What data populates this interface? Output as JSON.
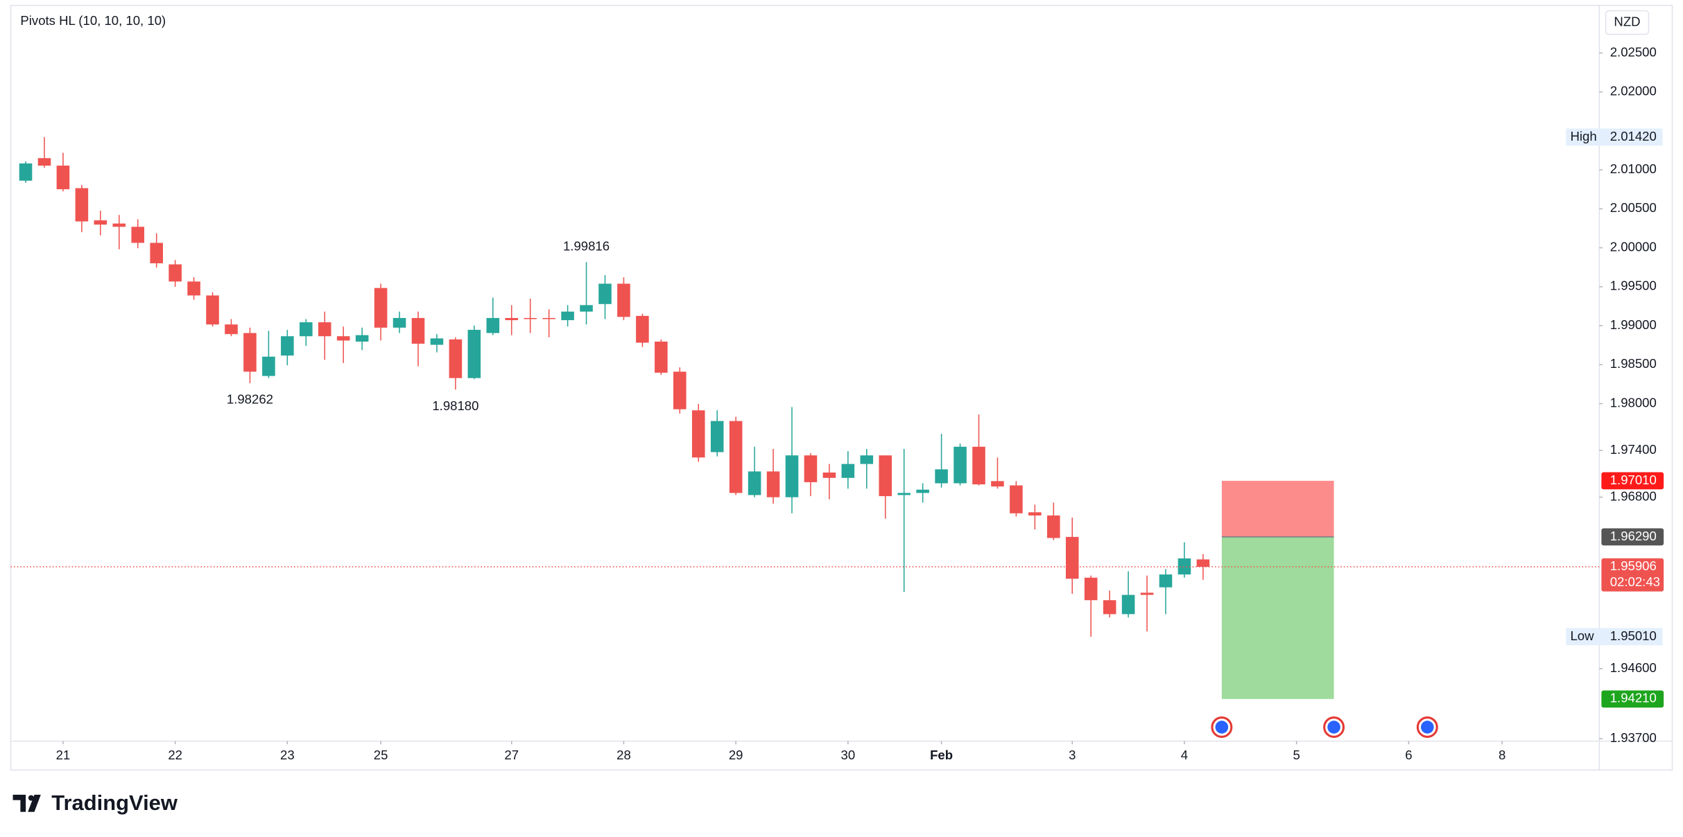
{
  "brand": "TradingView",
  "chart_data": {
    "type": "candlestick",
    "indicator": "Pivots HL (10, 10, 10, 10)",
    "currency": "NZD",
    "up_color": "#26a69a",
    "down_color": "#ef5350",
    "grid": false,
    "open": [
      2.00861,
      2.0115,
      2.01054,
      2.00765,
      2.00352,
      2.00311,
      2.00269,
      2.00063,
      1.99787,
      1.99567,
      1.99388,
      1.99016,
      1.98906,
      1.98355,
      1.98617,
      1.98865,
      1.99044,
      1.98865,
      1.98796,
      1.99484,
      1.98975,
      1.99099,
      1.98755,
      1.98824,
      1.98328,
      1.98906,
      1.99099,
      1.99099,
      1.99099,
      1.99071,
      1.99181,
      1.99278,
      1.99539,
      1.99126,
      1.98796,
      1.9841,
      1.97914,
      1.97378,
      1.97777,
      1.96827,
      1.9713,
      1.96799,
      1.97336,
      1.97116,
      1.97047,
      1.97226,
      1.97336,
      1.96827,
      1.96854,
      1.96978,
      1.96978,
      1.97447,
      1.97006,
      1.96951,
      1.96606,
      1.96565,
      1.9629,
      1.95767,
      1.95478,
      1.95299,
      1.95574,
      1.95643,
      1.95808,
      1.96001
    ],
    "high": [
      2.01109,
      2.0142,
      2.01219,
      2.00806,
      2.00476,
      2.00421,
      2.00366,
      2.00187,
      1.99842,
      1.99622,
      1.99429,
      1.99085,
      1.98975,
      1.98934,
      1.98947,
      1.99085,
      1.99181,
      1.98989,
      1.98975,
      1.9954,
      1.99181,
      1.99181,
      1.98892,
      1.98851,
      1.99002,
      1.9936,
      1.99264,
      1.99347,
      1.99209,
      1.99264,
      1.99816,
      1.9965,
      1.99622,
      1.99154,
      1.98824,
      1.98465,
      1.97997,
      1.97914,
      1.97832,
      1.97447,
      1.97419,
      1.97956,
      1.97364,
      1.97226,
      1.97391,
      1.97419,
      1.97336,
      1.97419,
      1.96978,
      1.97612,
      1.97488,
      1.9786,
      1.97309,
      1.97006,
      1.96703,
      1.9673,
      1.96538,
      1.95794,
      1.95601,
      1.95849,
      1.95794,
      1.95877,
      1.96221,
      1.9607
    ],
    "low": [
      2.00834,
      2.01027,
      2.00724,
      2.002,
      2.00159,
      1.9998,
      1.99994,
      1.99746,
      1.99498,
      1.99333,
      1.98989,
      1.98865,
      1.98262,
      1.98328,
      1.98493,
      1.98741,
      1.98562,
      1.98521,
      1.98686,
      1.9881,
      1.98906,
      1.98479,
      1.98658,
      1.9818,
      1.98314,
      1.98879,
      1.98879,
      1.98906,
      1.98851,
      1.98989,
      1.99016,
      1.99085,
      1.99071,
      1.98727,
      1.98369,
      1.97873,
      1.97254,
      1.97323,
      1.96827,
      1.96799,
      1.96716,
      1.96593,
      1.96813,
      1.96772,
      1.96909,
      1.96909,
      1.96524,
      1.95583,
      1.9673,
      1.96923,
      1.96951,
      1.96951,
      1.96909,
      1.96551,
      1.96386,
      1.96249,
      1.9556,
      1.9501,
      1.95257,
      1.95257,
      1.95078,
      1.95299,
      1.95767,
      1.95739
    ],
    "close": [
      2.01082,
      2.01054,
      2.00751,
      2.00338,
      2.00297,
      2.00269,
      2.00063,
      1.99801,
      1.99567,
      1.99388,
      1.99016,
      1.98892,
      1.9841,
      1.98603,
      1.98865,
      1.99044,
      1.98865,
      1.9881,
      1.98879,
      1.98975,
      1.99099,
      1.98769,
      1.98837,
      1.98328,
      1.98947,
      1.99099,
      1.99071,
      1.99085,
      1.99085,
      1.99181,
      1.99264,
      1.99539,
      1.99113,
      1.98782,
      1.98397,
      1.97928,
      1.97309,
      1.97777,
      1.96854,
      1.9713,
      1.96799,
      1.97336,
      1.96992,
      1.97047,
      1.97226,
      1.97336,
      1.96813,
      1.96854,
      1.96896,
      1.97157,
      1.97447,
      1.96964,
      1.96937,
      1.96593,
      1.96565,
      1.96276,
      1.95753,
      1.95478,
      1.95299,
      1.95546,
      1.95546,
      1.95808,
      1.96014,
      1.95906
    ],
    "xlim": [
      -0.8,
      84.2
    ],
    "xticks": [
      {
        "value": 2,
        "label": "21"
      },
      {
        "value": 8,
        "label": "22"
      },
      {
        "value": 14,
        "label": "23"
      },
      {
        "value": 19,
        "label": "25"
      },
      {
        "value": 26,
        "label": "27"
      },
      {
        "value": 32,
        "label": "28"
      },
      {
        "value": 38,
        "label": "29"
      },
      {
        "value": 44,
        "label": "30"
      },
      {
        "value": 49,
        "label": "Feb"
      },
      {
        "value": 56,
        "label": "3"
      },
      {
        "value": 62,
        "label": "4"
      },
      {
        "value": 68,
        "label": "5"
      },
      {
        "value": 74,
        "label": "6"
      },
      {
        "value": 79,
        "label": "8"
      }
    ],
    "ylim": [
      1.9367,
      2.0311
    ],
    "yticks": [
      {
        "value": 2.025,
        "label": "2.02500"
      },
      {
        "value": 2.02,
        "label": "2.02000"
      },
      {
        "value": 2.01,
        "label": "2.01000"
      },
      {
        "value": 2.005,
        "label": "2.00500"
      },
      {
        "value": 2.0,
        "label": "2.00000"
      },
      {
        "value": 1.995,
        "label": "1.99500"
      },
      {
        "value": 1.99,
        "label": "1.99000"
      },
      {
        "value": 1.985,
        "label": "1.98500"
      },
      {
        "value": 1.98,
        "label": "1.98000"
      },
      {
        "value": 1.974,
        "label": "1.97400"
      },
      {
        "value": 1.968,
        "label": "1.96800"
      },
      {
        "value": 1.946,
        "label": "1.94600"
      },
      {
        "value": 1.937,
        "label": "1.93700"
      }
    ],
    "pivots": [
      {
        "candle": 30,
        "kind": "high",
        "label": "1.99816"
      },
      {
        "candle": 12,
        "kind": "low",
        "label": "1.98262"
      },
      {
        "candle": 23,
        "kind": "low",
        "label": "1.98180"
      }
    ],
    "high_marker": {
      "name": "High",
      "label": "2.01420"
    },
    "low_marker": {
      "name": "Low",
      "label": "1.95010"
    },
    "last_price": {
      "label": "1.95906",
      "countdown": "02:02:43"
    },
    "position": {
      "x_start": 64,
      "x_end": 70,
      "stop": 1.9701,
      "stop_label": "1.97010",
      "stop_color": "#fc8c8c",
      "stop_label_color": "#ff1a1a",
      "entry": 1.9629,
      "entry_label": "1.96290",
      "entry_label_color": "#555555",
      "target": 1.9421,
      "target_label": "1.94210",
      "target_color": "#9fdb9c",
      "target_label_color": "#1ea51e"
    },
    "events": [
      64,
      70,
      75
    ]
  }
}
